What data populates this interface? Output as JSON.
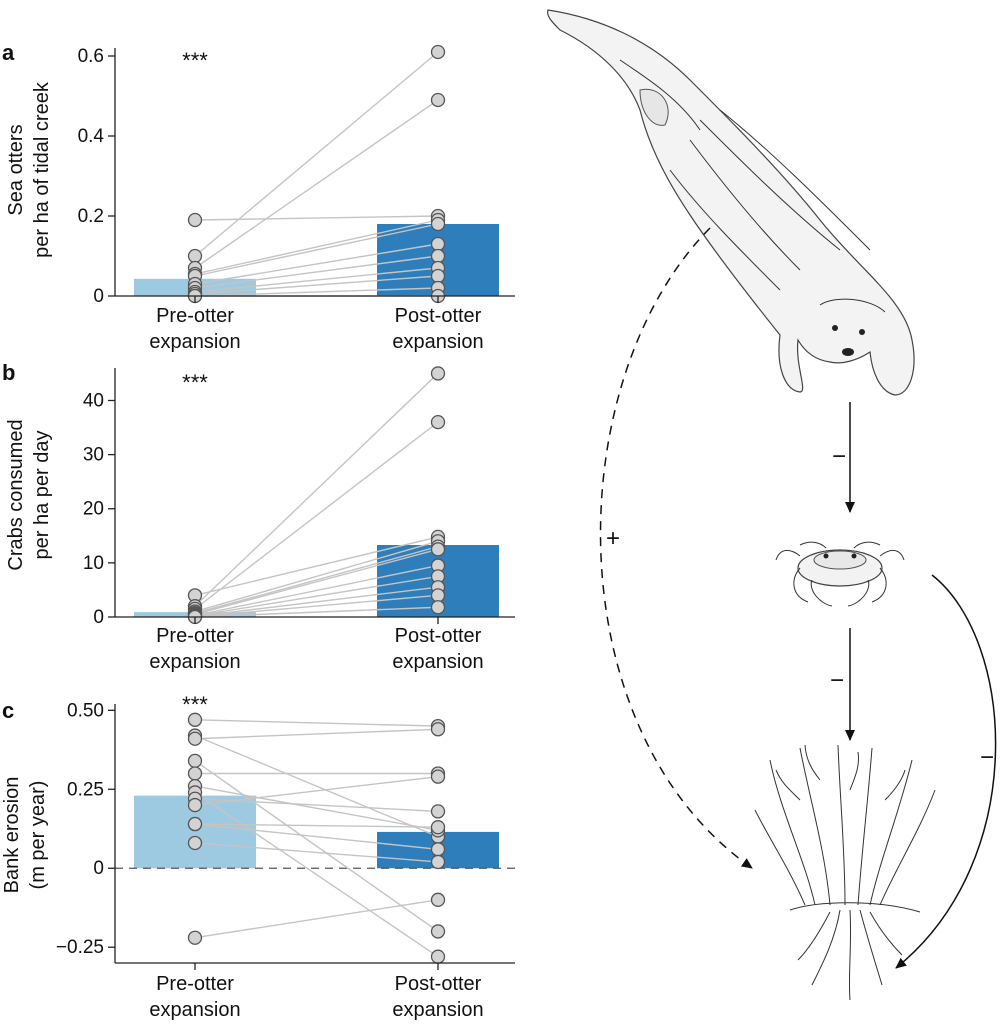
{
  "chart_data": [
    {
      "panel": "a",
      "type": "bar",
      "ylabel": [
        "Sea otters",
        "per ha of tidal creek"
      ],
      "categories": [
        [
          "Pre-otter",
          "expansion"
        ],
        [
          "Post-otter",
          "expansion"
        ]
      ],
      "values": [
        0.043,
        0.18
      ],
      "bar_colors": [
        "#9ecae1",
        "#2e7ebc"
      ],
      "ylim": [
        0,
        0.62
      ],
      "yticks": [
        0,
        0.2,
        0.4,
        0.6
      ],
      "yticklabels": [
        "0",
        "0.2",
        "0.4",
        "0.6"
      ],
      "significance": "***",
      "pairs": [
        [
          0.19,
          0.2
        ],
        [
          0.1,
          0.61
        ],
        [
          0.07,
          0.49
        ],
        [
          0.055,
          0.19
        ],
        [
          0.05,
          0.18
        ],
        [
          0.03,
          0.13
        ],
        [
          0.02,
          0.1
        ],
        [
          0.01,
          0.07
        ],
        [
          0.005,
          0.05
        ],
        [
          0.0,
          0.02
        ],
        [
          0.0,
          0.0
        ]
      ]
    },
    {
      "panel": "b",
      "type": "bar",
      "ylabel": [
        "Crabs consumed",
        "per ha per day"
      ],
      "categories": [
        [
          "Pre-otter",
          "expansion"
        ],
        [
          "Post-otter",
          "expansion"
        ]
      ],
      "values": [
        0.9,
        13.3
      ],
      "bar_colors": [
        "#9ecae1",
        "#2e7ebc"
      ],
      "ylim": [
        0,
        46
      ],
      "yticks": [
        0,
        10,
        20,
        30,
        40
      ],
      "yticklabels": [
        "0",
        "10",
        "20",
        "30",
        "40"
      ],
      "significance": "***",
      "pairs": [
        [
          4.0,
          14.8
        ],
        [
          2.0,
          45.0
        ],
        [
          1.5,
          36.0
        ],
        [
          1.0,
          14.0
        ],
        [
          0.7,
          13.0
        ],
        [
          0.5,
          12.5
        ],
        [
          0.3,
          9.5
        ],
        [
          0.2,
          7.5
        ],
        [
          0.1,
          5.5
        ],
        [
          0.05,
          4.0
        ],
        [
          0.0,
          1.8
        ]
      ]
    },
    {
      "panel": "c",
      "type": "bar",
      "ylabel": [
        "Bank erosion",
        "(m per year)"
      ],
      "categories": [
        [
          "Pre-otter",
          "expansion"
        ],
        [
          "Post-otter",
          "expansion"
        ]
      ],
      "values": [
        0.23,
        0.115
      ],
      "bar_colors": [
        "#9ecae1",
        "#2e7ebc"
      ],
      "ylim": [
        -0.3,
        0.52
      ],
      "yticks": [
        -0.25,
        0,
        0.25,
        0.5
      ],
      "yticklabels": [
        "−0.25",
        "0",
        "0.25",
        "0.50"
      ],
      "significance": "***",
      "zero_line": true,
      "pairs": [
        [
          0.47,
          0.45
        ],
        [
          0.42,
          0.1
        ],
        [
          0.41,
          0.44
        ],
        [
          0.34,
          -0.2
        ],
        [
          0.3,
          0.3
        ],
        [
          0.26,
          0.12
        ],
        [
          0.24,
          -0.28
        ],
        [
          0.22,
          0.18
        ],
        [
          0.2,
          0.29
        ],
        [
          0.14,
          0.06
        ],
        [
          0.14,
          0.13
        ],
        [
          0.08,
          0.02
        ],
        [
          -0.22,
          -0.1
        ]
      ]
    }
  ],
  "food_web": {
    "nodes": [
      "sea-otter",
      "shore-crab",
      "marsh-plant"
    ],
    "edges": [
      {
        "from": "sea-otter",
        "to": "shore-crab",
        "sign": "−"
      },
      {
        "from": "shore-crab",
        "to": "marsh-plant",
        "sign": "−"
      },
      {
        "from": "shore-crab",
        "to": "marsh-plant-roots",
        "sign": "−"
      },
      {
        "from": "sea-otter",
        "to": "marsh-plant",
        "sign": "+",
        "style": "dashed"
      }
    ]
  }
}
